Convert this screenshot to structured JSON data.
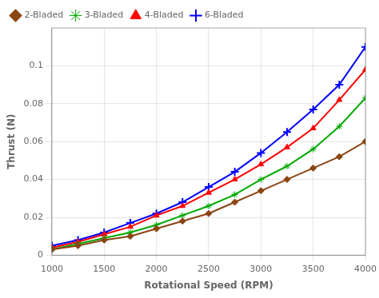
{
  "chart_data": {
    "type": "line",
    "xlabel": "Rotational Speed (RPM)",
    "ylabel": "Thrust (N)",
    "x": [
      1000,
      1250,
      1500,
      1750,
      2000,
      2250,
      2500,
      2750,
      3000,
      3250,
      3500,
      3750,
      4000
    ],
    "series": [
      {
        "name": "2-Bladed",
        "color": "#8B4513",
        "marker": "diamond",
        "values": [
          0.003,
          0.005,
          0.008,
          0.01,
          0.014,
          0.018,
          0.022,
          0.028,
          0.034,
          0.04,
          0.046,
          0.052,
          0.06
        ]
      },
      {
        "name": "3-Bladed",
        "color": "#00AA00",
        "marker": "star",
        "values": [
          0.003,
          0.006,
          0.009,
          0.012,
          0.016,
          0.021,
          0.026,
          0.032,
          0.04,
          0.047,
          0.056,
          0.068,
          0.083
        ]
      },
      {
        "name": "4-Bladed",
        "color": "#FF0000",
        "marker": "triangle",
        "values": [
          0.004,
          0.007,
          0.011,
          0.015,
          0.021,
          0.026,
          0.033,
          0.04,
          0.048,
          0.057,
          0.067,
          0.082,
          0.098
        ]
      },
      {
        "name": "6-Bladed",
        "color": "#0000FF",
        "marker": "plus",
        "values": [
          0.005,
          0.008,
          0.012,
          0.017,
          0.022,
          0.028,
          0.036,
          0.044,
          0.054,
          0.065,
          0.077,
          0.09,
          0.11
        ]
      }
    ],
    "xlim": [
      1000,
      4000
    ],
    "xticks": [
      1000,
      1500,
      2000,
      2500,
      3000,
      3500,
      4000
    ],
    "ylim": [
      0,
      0.12
    ],
    "yticks": [
      0,
      0.02,
      0.04,
      0.06,
      0.08,
      0.1
    ],
    "grid": true,
    "legend": "upper left"
  }
}
